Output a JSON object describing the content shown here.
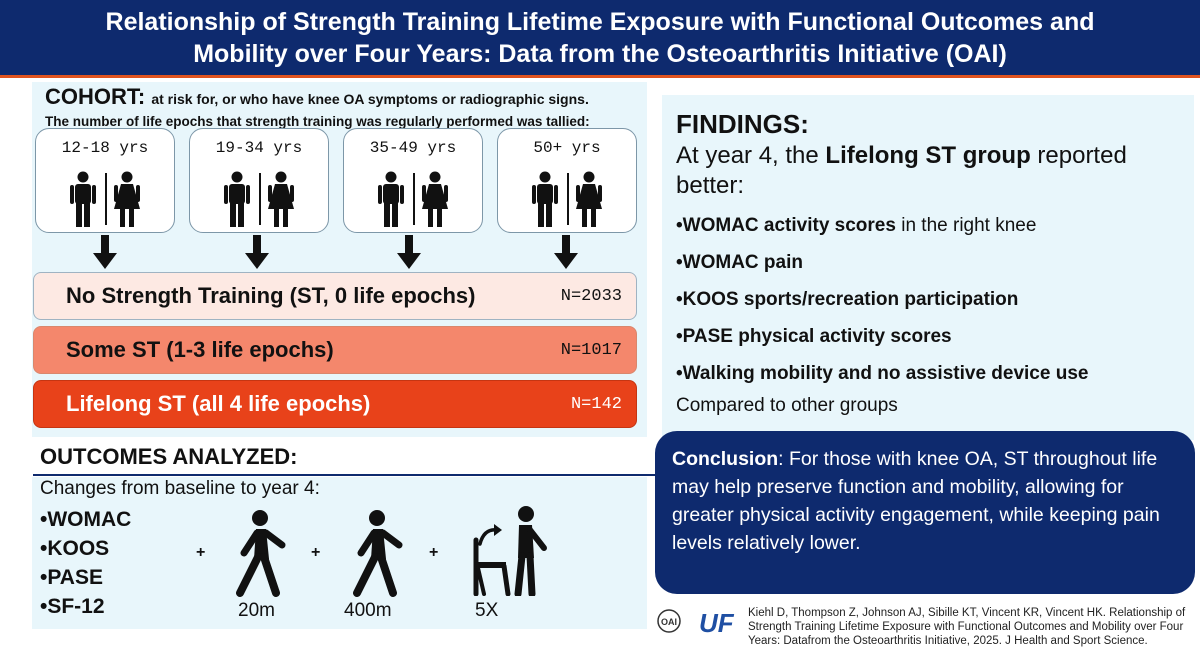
{
  "header": {
    "title_line1": "Relationship of Strength Training Lifetime Exposure with Functional Outcomes and",
    "title_line2": "Mobility over Four Years: Data from the Osteoarthritis Initiative (OAI)"
  },
  "cohort": {
    "title": "COHORT:",
    "subtitle": "at risk for, or who have knee OA symptoms or radiographic signs.",
    "line2": "The number of life epochs that strength training was regularly performed was tallied:",
    "epochs": [
      "12-18 yrs",
      "19-34 yrs",
      "35-49 yrs",
      "50+ yrs"
    ],
    "groups": [
      {
        "label": "No Strength Training (ST, 0 life epochs)",
        "n": "N=2033"
      },
      {
        "label": "Some ST (1-3 life epochs)",
        "n": "N=1017"
      },
      {
        "label": "Lifelong ST (all 4 life epochs)",
        "n": "N=142"
      }
    ]
  },
  "outcomes": {
    "title": "OUTCOMES ANALYZED:",
    "subtitle": "Changes from baseline to year 4:",
    "items": [
      "•WOMAC",
      "•KOOS",
      "•PASE",
      "•SF-12"
    ],
    "plus": "+",
    "tests": [
      "20m",
      "400m",
      "5X"
    ]
  },
  "findings": {
    "title": "FINDINGS:",
    "intro_pre": "At year 4, the ",
    "intro_bold": "Lifelong ST group",
    "intro_post": " reported better:",
    "items": [
      {
        "bold": "•WOMAC activity scores",
        "rest": " in the right knee"
      },
      {
        "bold": "•WOMAC pain",
        "rest": ""
      },
      {
        "bold": "•KOOS sports/recreation participation",
        "rest": ""
      },
      {
        "bold": "•PASE physical activity scores",
        "rest": ""
      },
      {
        "bold": "•Walking mobility and no assistive device use",
        "rest": ""
      }
    ],
    "compare": "Compared to other groups"
  },
  "conclusion": {
    "label": "Conclusion",
    "text": ": For those with knee OA, ST throughout life may help preserve function and mobility, allowing for greater physical activity engagement, while keeping pain levels relatively lower."
  },
  "citation": {
    "oai_logo": "OAI",
    "uf_logo": "UF",
    "text": "Kiehl D, Thompson Z, Johnson AJ, Sibille KT, Vincent KR, Vincent HK. Relationship of Strength Training Lifetime Exposure with Functional Outcomes and Mobility over Four Years: Datafrom the Osteoarthritis Initiative, 2025. J Health and Sport Science."
  },
  "colors": {
    "navy": "#0e2a6e",
    "accent_orange": "#e0531e",
    "light_blue": "#e8f6fb",
    "group_none": "#fde9e3",
    "group_some": "#f4876c",
    "group_lifelong": "#e8421a"
  },
  "icons": {
    "people": "man-woman-icon",
    "arrow": "down-arrow-icon",
    "walker": "walking-person-icon",
    "chair_stand": "chair-stand-icon"
  }
}
